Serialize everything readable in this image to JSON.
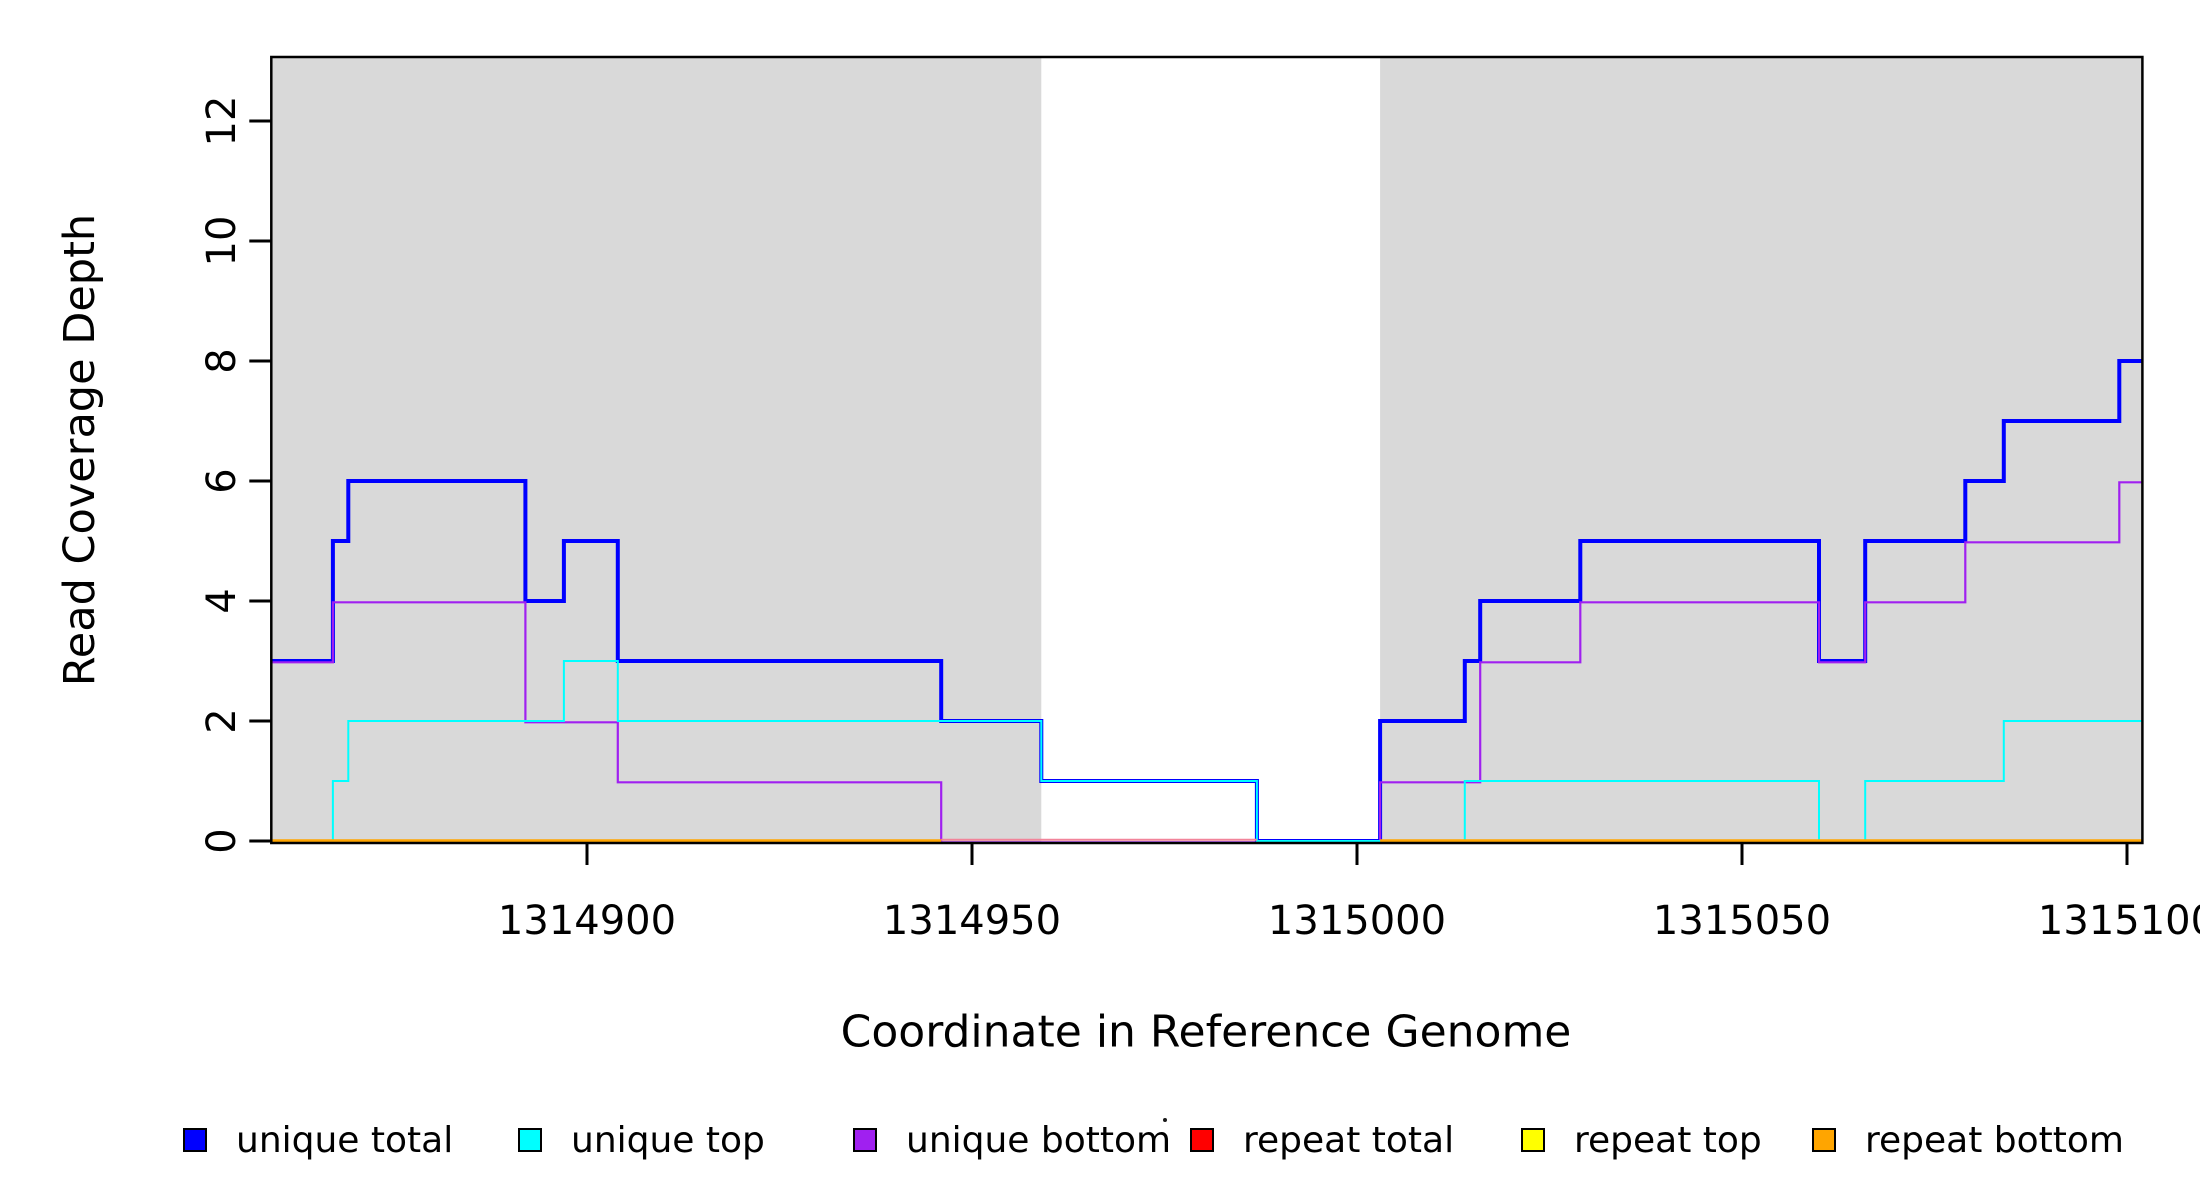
{
  "figure": {
    "y_axis": {
      "label": "Read Coverage Depth",
      "tick_labels": [
        "0",
        "2",
        "4",
        "6",
        "8",
        "10",
        "12"
      ],
      "tick_values": [
        0,
        2,
        4,
        6,
        8,
        10,
        12
      ]
    },
    "x_axis": {
      "label": "Coordinate in Reference Genome",
      "tick_labels": [
        "1314900",
        "1314950",
        "1315000",
        "1315050",
        "1315100"
      ],
      "tick_values": [
        1314900,
        1314950,
        1315000,
        1315050,
        1315100
      ]
    },
    "legend": {
      "items": [
        {
          "label": "unique total",
          "color": "#0000FF"
        },
        {
          "label": "unique top",
          "color": "#00FFFF"
        },
        {
          "label": "unique bottom",
          "color": "#A020F0"
        },
        {
          "label": "repeat total",
          "color": "#FF0000"
        },
        {
          "label": "repeat top",
          "color": "#FFFF00"
        },
        {
          "label": "repeat bottom",
          "color": "#FFA500"
        }
      ]
    }
  },
  "chart_data": {
    "type": "line",
    "subtype": "step",
    "title": "",
    "xlabel": "Coordinate in Reference Genome",
    "ylabel": "Read Coverage Depth",
    "xlim": [
      1314859,
      1315102
    ],
    "ylim": [
      0,
      13
    ],
    "x_ticks": [
      1314900,
      1314950,
      1315000,
      1315050,
      1315100
    ],
    "y_ticks": [
      0,
      2,
      4,
      6,
      8,
      10,
      12
    ],
    "grid": false,
    "legend_position": "bottom",
    "background_color": "#FFFFFF",
    "shade_color": "#D9D9D9",
    "shaded_regions": [
      {
        "from": 1314859,
        "to": 1314959
      },
      {
        "from": 1315003,
        "to": 1315102
      }
    ],
    "series": [
      {
        "name": "unique total",
        "color": "#0000FF",
        "width": 4,
        "y_offset": 0,
        "visible": true,
        "segments": [
          {
            "steps": [
              [
                1314859,
                3
              ],
              [
                1314867,
                5
              ],
              [
                1314869,
                6
              ],
              [
                1314892,
                4
              ],
              [
                1314897,
                5
              ],
              [
                1314904,
                3
              ],
              [
                1314946,
                2
              ],
              [
                1314959,
                1
              ],
              [
                1314987,
                0
              ],
              [
                1315003,
                2
              ],
              [
                1315014,
                3
              ],
              [
                1315016,
                4
              ],
              [
                1315029,
                5
              ],
              [
                1315060,
                3
              ],
              [
                1315066,
                5
              ],
              [
                1315079,
                6
              ],
              [
                1315084,
                7
              ],
              [
                1315099,
                8
              ]
            ],
            "end": 1315102
          }
        ]
      },
      {
        "name": "unique bottom",
        "color": "#A020F0",
        "width": 2.2,
        "y_offset": 1.3,
        "visible": true,
        "segments": [
          {
            "steps": [
              [
                1314859,
                3
              ],
              [
                1314867,
                4
              ],
              [
                1314892,
                2
              ],
              [
                1314904,
                1
              ],
              [
                1314946,
                0
              ],
              [
                1315003,
                1
              ],
              [
                1315016,
                3
              ],
              [
                1315029,
                4
              ],
              [
                1315060,
                3
              ],
              [
                1315066,
                4
              ],
              [
                1315079,
                5
              ],
              [
                1315099,
                6
              ]
            ],
            "end": 1315102
          }
        ]
      },
      {
        "name": "unique top",
        "color": "#00FFFF",
        "width": 2,
        "y_offset": 0,
        "visible": true,
        "segments": [
          {
            "steps": [
              [
                1314859,
                0
              ],
              [
                1314867,
                1
              ],
              [
                1314869,
                2
              ],
              [
                1314897,
                3
              ],
              [
                1314904,
                2
              ],
              [
                1314959,
                1
              ],
              [
                1314987,
                0
              ],
              [
                1315014,
                1
              ],
              [
                1315060,
                0
              ],
              [
                1315066,
                1
              ],
              [
                1315084,
                2
              ]
            ],
            "end": 1315102
          }
        ]
      },
      {
        "name": "repeat total",
        "color": "#F2849A",
        "width": 2,
        "y_offset": -1.2,
        "visible": true,
        "segments": [
          {
            "steps": [
              [
                1314946,
                0
              ]
            ],
            "end": 1314987
          }
        ]
      },
      {
        "name": "repeat top",
        "color": "#FFFF00",
        "width": 2,
        "y_offset": 0,
        "visible": false,
        "segments": []
      },
      {
        "name": "repeat bottom",
        "color": "#FFA500",
        "width": 3.5,
        "y_offset": 0,
        "visible": true,
        "segments": [
          {
            "steps": [
              [
                1314859,
                0
              ]
            ],
            "end": 1314946
          },
          {
            "steps": [
              [
                1315003,
                0
              ]
            ],
            "end": 1315102
          }
        ]
      }
    ]
  }
}
